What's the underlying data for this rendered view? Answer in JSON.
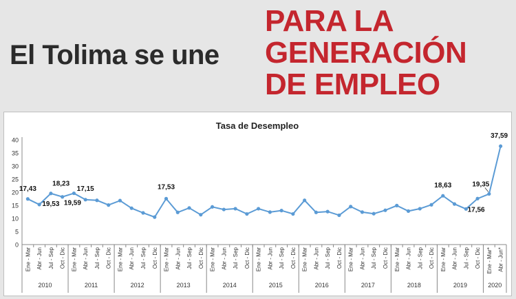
{
  "banner": {
    "left_text": "El Tolima se une",
    "right_lines": [
      "PARA LA",
      "GENERACIÓN",
      "DE EMPLEO"
    ]
  },
  "colors": {
    "line": "#5b9bd5",
    "brand_red": "#c4262e",
    "text_dark": "#2b2b2b"
  },
  "chart_data": {
    "type": "line",
    "title": "Tasa de Desempleo",
    "xlabel": "",
    "ylabel": "",
    "ylim": [
      0,
      40
    ],
    "yticks": [
      0,
      5,
      10,
      15,
      20,
      25,
      30,
      35,
      40
    ],
    "grid": false,
    "categories": [
      "Ene - Mar",
      "Abr - Jun",
      "Jul - Sep",
      "Oct - Dic",
      "Ene - Mar",
      "Abr - Jun",
      "Jul - Sep",
      "Oct - Dic",
      "Ene - Mar",
      "Abr - Jun",
      "Jul - Sep",
      "Oct - Dic",
      "Ene - Mar",
      "Abr - Jun",
      "Jul - Sep",
      "Oct - Dic",
      "Ene - Mar",
      "Abr - Jun",
      "Jul - Sep",
      "Oct - Dic",
      "Ene - Mar",
      "Abr - Jun",
      "Jul - Sep",
      "Oct - Dic",
      "Ene - Mar",
      "Abr - Jun",
      "Jul - Sep",
      "Oct - Dic",
      "Ene - Mar",
      "Abr - Jun",
      "Jul - Sep",
      "Oct - Dic",
      "Ene - Mar",
      "Abr - Jun",
      "Jul - Sep",
      "Oct - Dic",
      "Ene - Mar",
      "Abr - Jun",
      "Jul - Sep",
      "Oct - Dic",
      "Ene - Mar*",
      "Abr - Jun*"
    ],
    "years": [
      {
        "label": "2010",
        "count": 4
      },
      {
        "label": "2011",
        "count": 4
      },
      {
        "label": "2012",
        "count": 4
      },
      {
        "label": "2013",
        "count": 4
      },
      {
        "label": "2014",
        "count": 4
      },
      {
        "label": "2015",
        "count": 4
      },
      {
        "label": "2016",
        "count": 4
      },
      {
        "label": "2017",
        "count": 4
      },
      {
        "label": "2018",
        "count": 4
      },
      {
        "label": "2019",
        "count": 4
      },
      {
        "label": "2020",
        "count": 2
      }
    ],
    "series": [
      {
        "name": "Tasa de Desempleo",
        "values": [
          17.43,
          15.3,
          19.53,
          18.23,
          19.59,
          17.15,
          16.9,
          15.1,
          16.8,
          13.9,
          12.1,
          10.5,
          17.53,
          12.3,
          14.0,
          11.4,
          14.4,
          13.4,
          13.7,
          11.7,
          13.7,
          12.4,
          13.0,
          11.7,
          16.9,
          12.3,
          12.6,
          11.2,
          14.5,
          12.4,
          11.8,
          13.1,
          14.9,
          12.8,
          13.7,
          15.2,
          18.63,
          15.5,
          13.6,
          17.56,
          19.35,
          37.59
        ]
      }
    ],
    "data_labels": [
      {
        "index": 0,
        "text": "17,43"
      },
      {
        "index": 2,
        "text": "19,53"
      },
      {
        "index": 3,
        "text": "18,23"
      },
      {
        "index": 4,
        "text": "19,59"
      },
      {
        "index": 5,
        "text": "17,15"
      },
      {
        "index": 12,
        "text": "17,53"
      },
      {
        "index": 36,
        "text": "18,63"
      },
      {
        "index": 39,
        "text": "17,56"
      },
      {
        "index": 40,
        "text": "19,35"
      },
      {
        "index": 41,
        "text": "37,59"
      }
    ]
  }
}
